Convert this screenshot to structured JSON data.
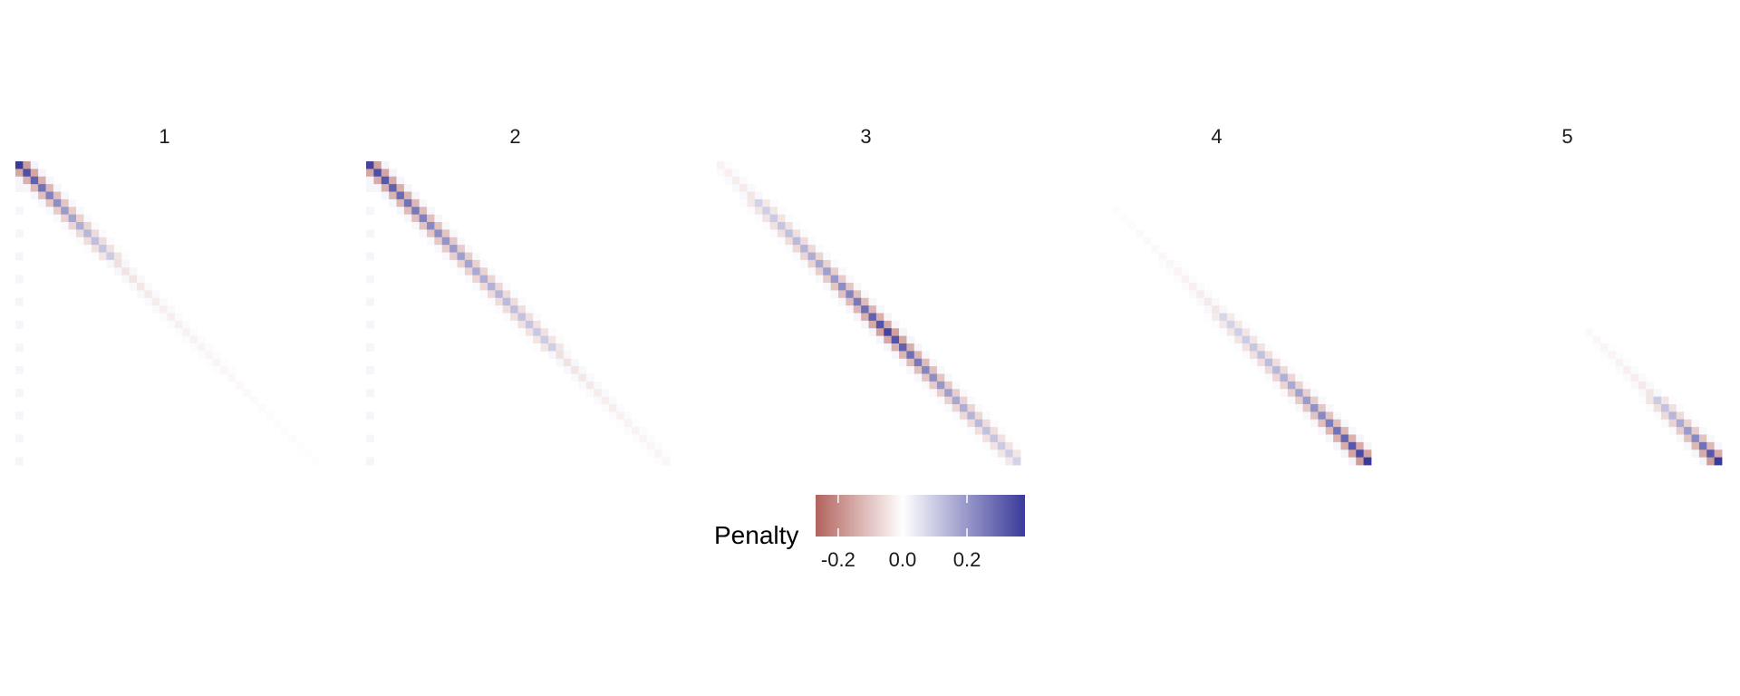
{
  "chart_data": {
    "type": "heatmap",
    "matrix_size": 40,
    "facets": [
      {
        "label": "1",
        "peak": 0.38,
        "decay": 9,
        "sign_flip": 12,
        "start": 0,
        "end": 40
      },
      {
        "label": "2",
        "peak": 0.36,
        "decay": 18,
        "sign_flip": 24,
        "start": 0,
        "end": 40
      },
      {
        "label": "3",
        "peak": 0.36,
        "decay": 12,
        "center": 22,
        "sign_flip_low": 5,
        "start": 0,
        "end": 40
      },
      {
        "label": "4",
        "peak": 0.38,
        "decay": 12,
        "center": 39,
        "sign_flip_low": 20,
        "start": 6,
        "end": 40
      },
      {
        "label": "5",
        "peak": 0.38,
        "decay": 6,
        "center": 39,
        "sign_flip_low": 31,
        "start": 22,
        "end": 40
      }
    ],
    "legend": {
      "title": "Penalty",
      "breaks": [
        -0.2,
        0.0,
        0.2
      ],
      "break_labels": [
        "-0.2",
        "0.0",
        "0.2"
      ],
      "limits": [
        -0.27,
        0.38
      ],
      "placement": "bottom"
    },
    "colors": {
      "low": "#b2635e",
      "mid": "#ffffff",
      "high": "#3a3a9a"
    }
  }
}
